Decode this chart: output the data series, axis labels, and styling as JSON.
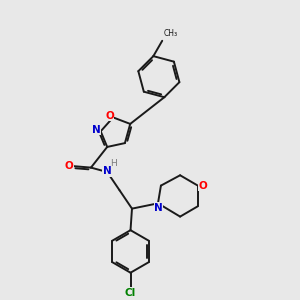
{
  "background_color": "#e8e8e8",
  "bond_color": "#1a1a1a",
  "bond_width": 1.4,
  "atom_colors": {
    "O": "#ff0000",
    "N": "#0000cc",
    "Cl": "#008000",
    "C": "#1a1a1a",
    "H": "#7a7a7a"
  },
  "font_size": 7.5,
  "dbl_sep": 0.055
}
